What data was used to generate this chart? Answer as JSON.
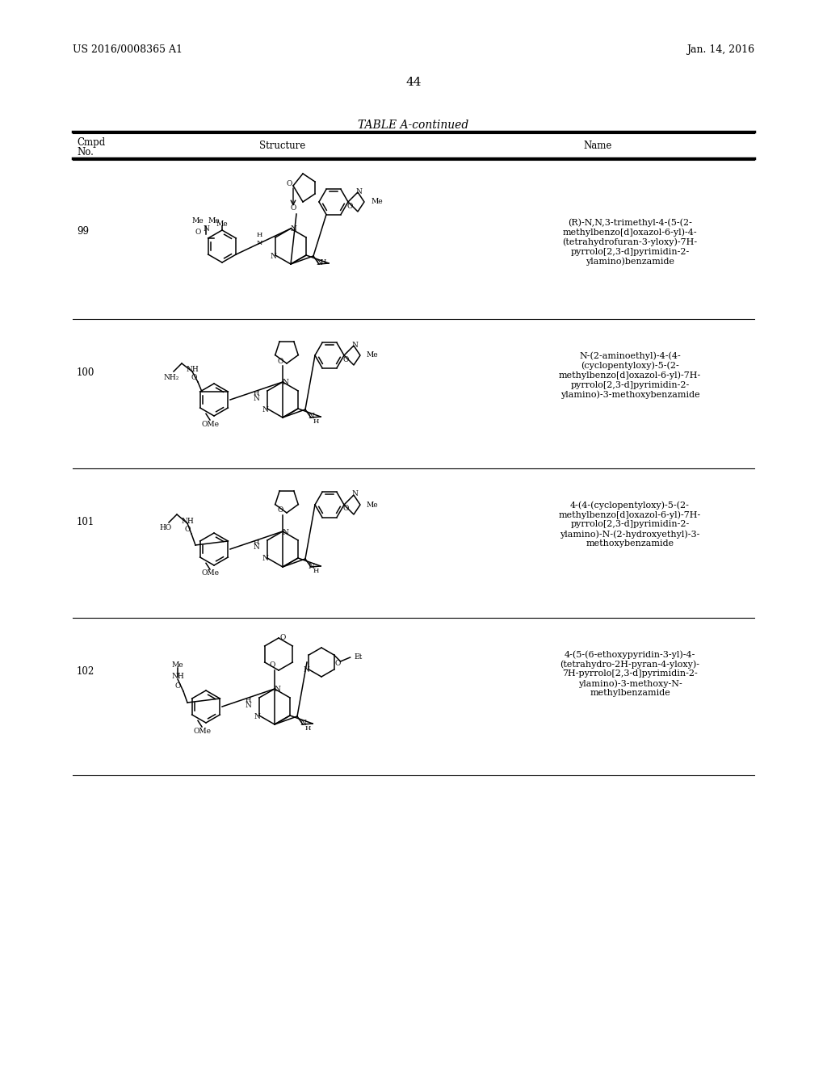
{
  "page_number": "44",
  "patent_left": "US 2016/0008365 A1",
  "patent_right": "Jan. 14, 2016",
  "table_title": "TABLE A-continued",
  "col1_header": "Cmpd\nNo.",
  "col2_header": "Structure",
  "col3_header": "Name",
  "bg_color": "#ffffff",
  "text_color": "#000000",
  "compounds": [
    {
      "number": "99",
      "name": "(R)-N,N,3-trimethyl-4-(5-(2-\nmethylbenzo[d]oxazol-6-yl)-4-\n(tetrahydrofuran-3-yloxy)-7H-\npyrrolo[2,3-d]pyrimidin-2-\nylamino)benzamide"
    },
    {
      "number": "100",
      "name": "N-(2-aminoethyl)-4-(4-\n(cyclopentyloxy)-5-(2-\nmethylbenzo[d]oxazol-6-yl)-7H-\npyrrolo[2,3-d]pyrimidin-2-\nylamino)-3-methoxybenzamide"
    },
    {
      "number": "101",
      "name": "4-(4-(cyclopentyloxy)-5-(2-\nmethylbenzo[d]oxazol-6-yl)-7H-\npyrrolo[2,3-d]pyrimidin-2-\nylamino)-N-(2-hydroxyethyl)-3-\nmethoxybenzamide"
    },
    {
      "number": "102",
      "name": "4-(5-(6-ethoxypyridin-3-yl)-4-\n(tetrahydro-2H-pyran-4-yloxy)-\n7H-pyrrolo[2,3-d]pyrimidin-2-\nylamino)-3-methoxy-N-\nmethylbenzamide"
    }
  ]
}
